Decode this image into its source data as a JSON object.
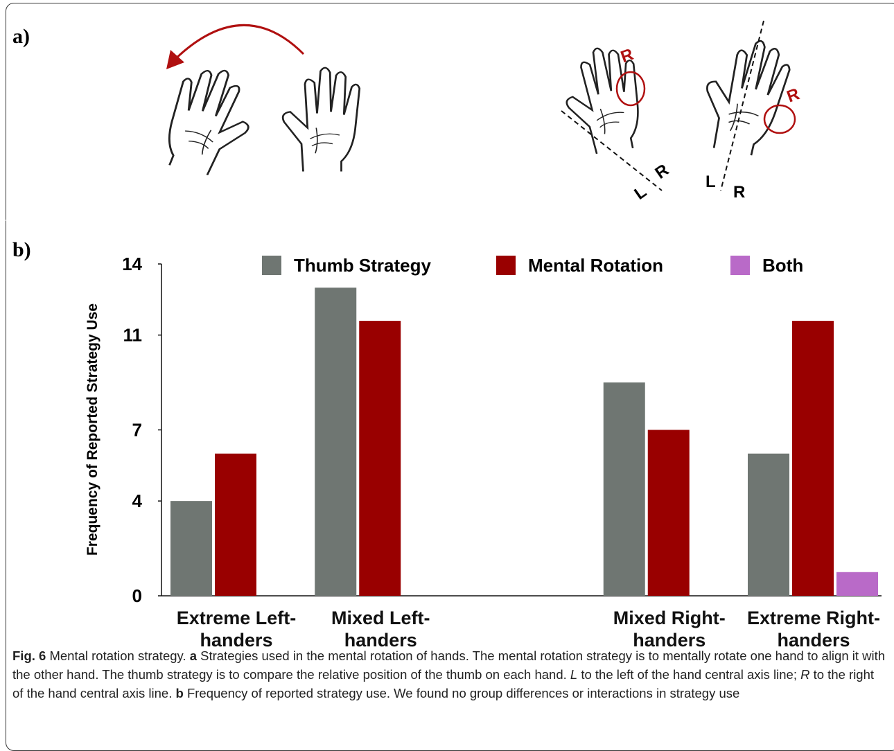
{
  "panel_a": {
    "label": "a)",
    "annotations": [
      "R",
      "L",
      "R",
      "R",
      "L",
      "R"
    ]
  },
  "panel_b": {
    "label": "b)"
  },
  "chart_data": {
    "type": "bar",
    "y_label": "Frequency of Reported Strategy Use",
    "categories": [
      "Extreme Left-handers",
      "Mixed Left-handers",
      null,
      "Mixed Right-handers",
      "Extreme Right-handers"
    ],
    "series": [
      {
        "name": "Thumb Strategy",
        "color": "#6f7672",
        "values": [
          4,
          13,
          null,
          9,
          6
        ]
      },
      {
        "name": "Mental Rotation",
        "color": "#990000",
        "values": [
          6,
          11.6,
          null,
          7,
          11.6
        ]
      },
      {
        "name": "Both",
        "color": "#b96ac8",
        "values": [
          null,
          null,
          null,
          null,
          1
        ]
      }
    ],
    "ylim": [
      0,
      14
    ],
    "yticks": [
      0,
      4,
      7,
      11,
      14
    ],
    "grid": false,
    "legend": "top"
  },
  "caption": {
    "runs": [
      "Fig. 6",
      " Mental rotation strategy. ",
      "a",
      " Strategies used in the mental rotation of hands. The mental rotation strategy is to mentally rotate one hand to align it with the other hand. The thumb strategy is to compare the relative position of the thumb on each hand. ",
      "L",
      " to the left of the hand central axis line; ",
      "R",
      " to the right of the hand central axis line. ",
      "b",
      " Frequency of reported strategy use. We found no group differences or interactions in strategy use"
    ]
  }
}
